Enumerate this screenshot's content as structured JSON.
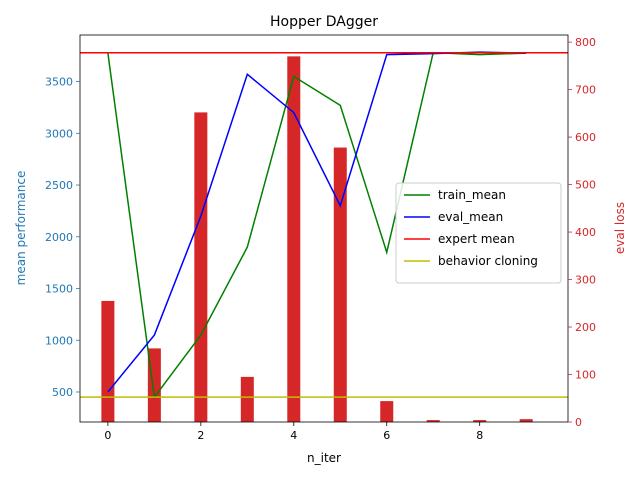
{
  "chart_data": {
    "type": "bar",
    "title": "Hopper DAgger",
    "xlabel": "n_iter",
    "ylabel_left": "mean performance",
    "ylabel_right": "eval loss",
    "xlim": [
      -0.6,
      9.9
    ],
    "ylim_left": [
      210,
      3950
    ],
    "ylim_right": [
      0,
      815
    ],
    "x_ticks": [
      0,
      2,
      4,
      6,
      8
    ],
    "y_left_ticks": [
      500,
      1000,
      1500,
      2000,
      2500,
      3000,
      3500
    ],
    "y_right_ticks": [
      0,
      100,
      200,
      300,
      400,
      500,
      600,
      700,
      800
    ],
    "grid": false,
    "legend_position": "center-right",
    "colors": {
      "left_axis": "#1f77b4",
      "right_axis": "#d62728"
    },
    "x": [
      0,
      1,
      2,
      3,
      4,
      5,
      6,
      7,
      8,
      9
    ],
    "bar_series": {
      "axis": "right",
      "color": "#d62728",
      "values": [
        255,
        155,
        652,
        95,
        770,
        578,
        44,
        4,
        4,
        6
      ]
    },
    "series": [
      {
        "name": "train_mean",
        "axis": "left",
        "color": "#008000",
        "values": [
          3775,
          450,
          1050,
          1900,
          3550,
          3270,
          1850,
          3780,
          3760,
          3775
        ]
      },
      {
        "name": "eval_mean",
        "axis": "left",
        "color": "#0000ff",
        "values": [
          500,
          1050,
          2200,
          3570,
          3200,
          2300,
          3760,
          3770,
          3785,
          3775
        ]
      },
      {
        "name": "expert mean",
        "axis": "left",
        "color": "#ff0000",
        "constant": 3778
      },
      {
        "name": "behavior cloning",
        "axis": "left",
        "color": "#bfbf00",
        "constant": 450
      }
    ]
  }
}
